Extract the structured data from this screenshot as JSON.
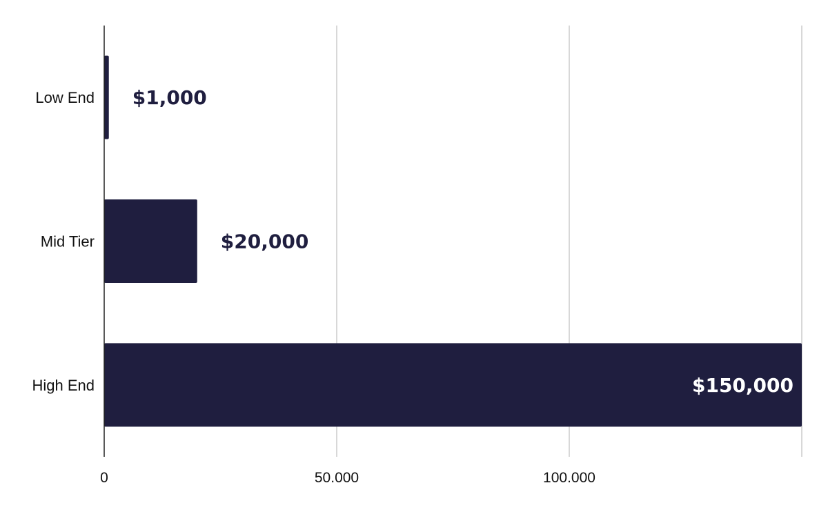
{
  "chart_data": {
    "type": "bar",
    "orientation": "horizontal",
    "categories": [
      "Low End",
      "Mid Tier",
      "High End"
    ],
    "values": [
      1000,
      20000,
      150000
    ],
    "data_labels": [
      "$1,000",
      "$20,000",
      "$150,000"
    ],
    "xlim": [
      0,
      150000
    ],
    "x_ticks": [
      0,
      50000,
      100000
    ],
    "x_tick_labels": [
      "0",
      "50.000",
      "100.000"
    ],
    "grid": true,
    "legend": "none"
  },
  "colors": {
    "bar": "#1f1e3f",
    "label_inside": "#ffffff",
    "label_outside": "#1f1e3f",
    "grid": "#cccccc",
    "axis": "#222222"
  }
}
